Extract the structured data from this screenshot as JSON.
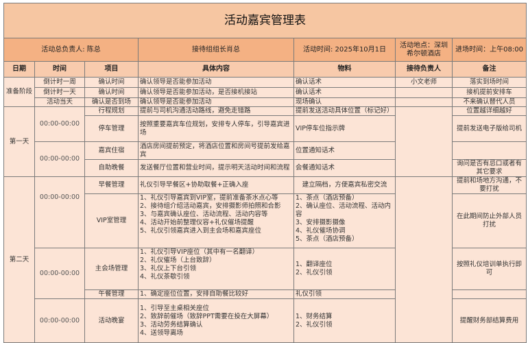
{
  "title": "活动嘉宾管理表",
  "header_info": {
    "lead": "活动总负责人: 陈总",
    "reception_lead": "接待组组长肖总",
    "event_time": "活动时间:   2025年10月1日",
    "location": "活动地点：深圳希尔顿酒店",
    "entry_time": "进场时间：上午08:00"
  },
  "columns": [
    "日期",
    "时间",
    "项目",
    "具体内容",
    "物料",
    "接待负责人",
    "备注"
  ],
  "prep": {
    "date": "准备阶段",
    "rows": [
      {
        "time": "倒计时一周",
        "item": "确认时间",
        "content": "确认领导是否能参加活动",
        "material": "确认话术",
        "owner": "小文老师",
        "note": "落实到场时间"
      },
      {
        "time": "倒计时一天",
        "item": "确认时间",
        "content": "确认领导是否能参加活动，是否接机接站",
        "material": "确认话术",
        "owner": "",
        "note": "接机提前安排车"
      },
      {
        "time": "活动当天",
        "item": "确认是否到场",
        "content": "确认领导是否能参加活动",
        "material": "现场确认",
        "owner": "",
        "note": "不来确认替代人员"
      }
    ]
  },
  "day1": {
    "date": "第一天",
    "times": [
      "00:00-00:00",
      "00:00-00:00"
    ],
    "rows": [
      {
        "item": "行程规划",
        "content": "提前与司机沟通活动路线，避免走错路",
        "material": "提前发送活动具体位置（标记好）",
        "note": "位置越详细越好"
      },
      {
        "item": "停车管理",
        "content": "按照重要嘉宾车位规划，安排专人停车，引导嘉宾进场",
        "material": "VIP停车位指示牌",
        "note": "提前发送电子版给司机"
      },
      {
        "item": "嘉宾住宿",
        "content": "酒店房间提前预定，将酒店位置和房间号提前发给嘉宾",
        "material": "位置通知话术",
        "note": ""
      },
      {
        "item": "自助晚餐",
        "content": "发送餐厅位置和营业时间，提示明天活动时间和流程",
        "material": "会餐通知话术",
        "note": "询问是否有忌口或者有其它要求"
      }
    ]
  },
  "day2": {
    "date": "第二天",
    "times": [
      "00:00-00:00",
      "00:00-00:00",
      "00:00-00:00"
    ],
    "rows": [
      {
        "item": "早餐管理",
        "content": "礼仪引导早餐区+协助取餐+正确入座",
        "material": "建立隔档，方便嘉宾私密交流",
        "note": "提前和场地方沟通，不要打扰"
      },
      {
        "item": "VIP室管理",
        "content": "1、礼仪引导嘉宾到VIP室，提前准备茶水点心等\n2、接待组介绍活动嘉宾，安排摄影师拍照和合影\n3、与嘉宾确认座位、活动流程、活动内容等\n4、活动开始前整理仪容+礼仪催场提醒\n5、礼仪引领嘉宾进入到主会场和嘉宾座位",
        "material": "1、茶点（酒店预备）\n2、确认座位、活动流程、活动内容\n3、安排摄影摄像\n4、礼仪催场协调\n5、茶点（酒店预备）",
        "note": "在此期间防止外部人员打扰"
      },
      {
        "item": "主会场管理",
        "content": "1、礼仪引导VIP座位（其中有一名翻译）\n2、礼仪催场（上台致辞）\n3、礼仪上下台引领\n4、礼仪茶歇引领",
        "material": "1、翻译座位\n2、礼仪引领",
        "note": "按照礼仪培训单执行即可"
      },
      {
        "item": "午餐管理",
        "content": "1、确定座位位置，安排自助餐比较好",
        "material": "礼仪引领",
        "note": ""
      },
      {
        "item": "活动晚宴",
        "content": "1、引导至主桌相关座位\n2、致辞前催场（致辞PPT需要在投在大屏幕）\n3、活动劳务结算确认\n4、送领导离场",
        "material": "1、财务结算\n2、礼仪引领",
        "note": "提醒财务部结算费用"
      }
    ]
  }
}
